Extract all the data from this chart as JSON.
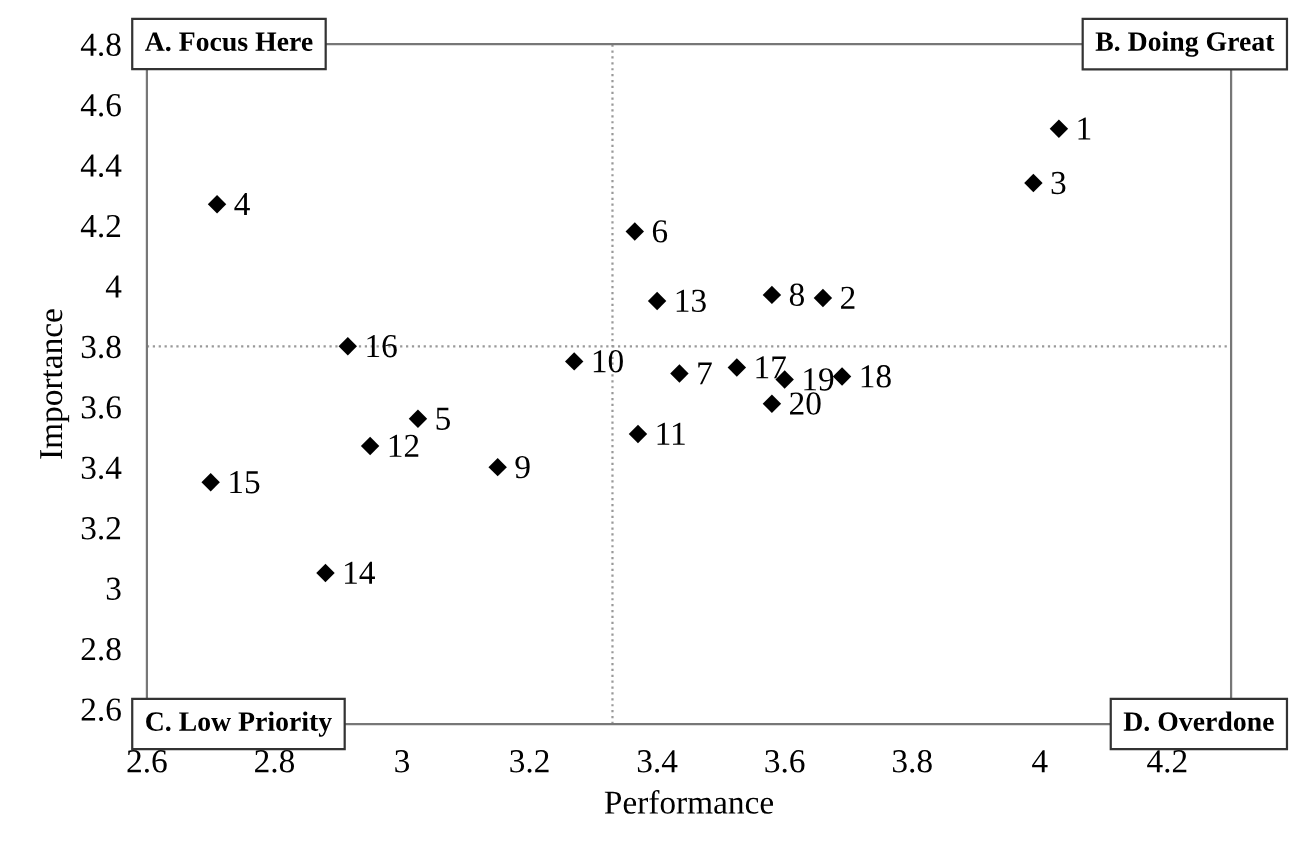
{
  "chart_data": {
    "type": "scatter",
    "xlabel": "Performance",
    "ylabel": "Importance",
    "x": [
      4.03,
      3.66,
      3.99,
      2.71,
      3.025,
      3.365,
      3.435,
      3.58,
      3.15,
      3.27,
      3.37,
      2.95,
      3.4,
      2.88,
      2.7,
      2.915,
      3.525,
      3.69,
      3.6,
      3.58
    ],
    "values": [
      4.52,
      3.96,
      4.34,
      4.27,
      3.56,
      4.18,
      3.71,
      3.97,
      3.4,
      3.75,
      3.51,
      3.47,
      3.95,
      3.05,
      3.35,
      3.8,
      3.73,
      3.7,
      3.69,
      3.61
    ],
    "color": "#000000",
    "marker": "diamond",
    "xlim": [
      2.6,
      4.3
    ],
    "ylim": [
      2.55,
      4.8
    ],
    "xticks": [
      2.6,
      2.8,
      3,
      3.2,
      3.4,
      3.6,
      3.8,
      4,
      4.2
    ],
    "yticks": [
      2.6,
      2.8,
      3,
      3.2,
      3.4,
      3.6,
      3.8,
      4,
      4.2,
      4.4,
      4.6,
      4.8
    ],
    "grid": false,
    "ref_lines": [
      {
        "axis": "x",
        "value": 3.33,
        "color": "#999999",
        "line_style": "dotted"
      },
      {
        "axis": "y",
        "value": 3.8,
        "color": "#999999",
        "line_style": "dotted"
      }
    ],
    "annotations": [
      "A. Focus Here",
      "B. Doing Great",
      "C. Low Priority",
      "D. Overdone",
      {
        "text": "1",
        "x": 4.03,
        "y": 4.52
      },
      {
        "text": "2",
        "x": 3.66,
        "y": 3.96
      },
      {
        "text": "3",
        "x": 3.99,
        "y": 4.34
      },
      {
        "text": "4",
        "x": 2.71,
        "y": 4.27
      },
      {
        "text": "5",
        "x": 3.025,
        "y": 3.56
      },
      {
        "text": "6",
        "x": 3.365,
        "y": 4.18
      },
      {
        "text": "7",
        "x": 3.435,
        "y": 3.71
      },
      {
        "text": "8",
        "x": 3.58,
        "y": 3.97
      },
      {
        "text": "9",
        "x": 3.15,
        "y": 3.4
      },
      {
        "text": "10",
        "x": 3.27,
        "y": 3.75
      },
      {
        "text": "11",
        "x": 3.37,
        "y": 3.51
      },
      {
        "text": "12",
        "x": 2.95,
        "y": 3.47
      },
      {
        "text": "13",
        "x": 3.4,
        "y": 3.95
      },
      {
        "text": "14",
        "x": 2.88,
        "y": 3.05
      },
      {
        "text": "15",
        "x": 2.7,
        "y": 3.35
      },
      {
        "text": "16",
        "x": 2.915,
        "y": 3.8
      },
      {
        "text": "17",
        "x": 3.525,
        "y": 3.73
      },
      {
        "text": "18",
        "x": 3.69,
        "y": 3.7
      },
      {
        "text": "19",
        "x": 3.6,
        "y": 3.69
      },
      {
        "text": "20",
        "x": 3.58,
        "y": 3.61
      }
    ]
  }
}
